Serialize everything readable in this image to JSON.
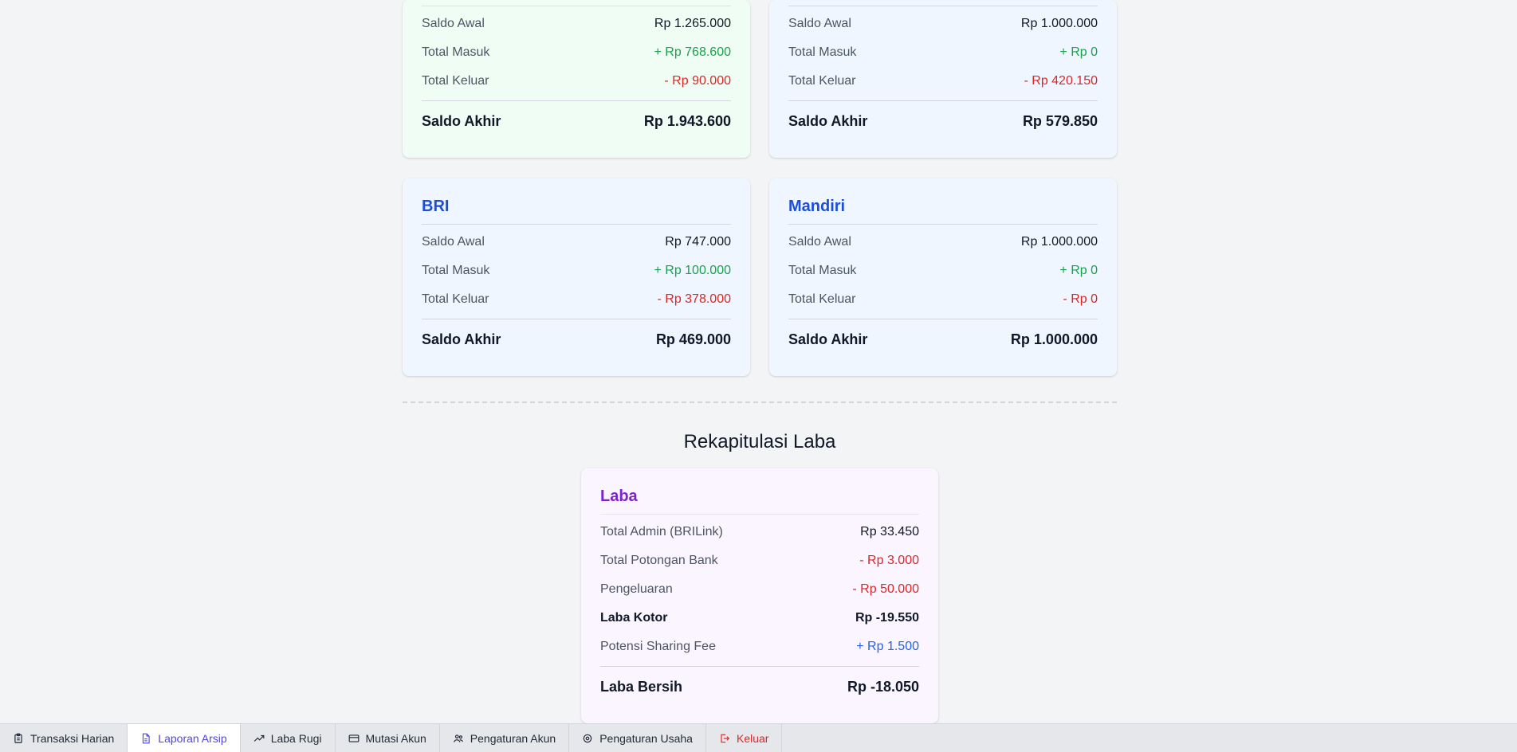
{
  "cards_top": [
    {
      "saldo_awal_label": "Saldo Awal",
      "saldo_awal": "Rp 1.265.000",
      "total_masuk_label": "Total Masuk",
      "total_masuk": "+ Rp 768.600",
      "total_keluar_label": "Total Keluar",
      "total_keluar": "- Rp 90.000",
      "saldo_akhir_label": "Saldo Akhir",
      "saldo_akhir": "Rp 1.943.600"
    },
    {
      "saldo_awal_label": "Saldo Awal",
      "saldo_awal": "Rp 1.000.000",
      "total_masuk_label": "Total Masuk",
      "total_masuk": "+ Rp 0",
      "total_keluar_label": "Total Keluar",
      "total_keluar": "- Rp 420.150",
      "saldo_akhir_label": "Saldo Akhir",
      "saldo_akhir": "Rp 579.850"
    }
  ],
  "cards_banks": [
    {
      "title": "BRI",
      "saldo_awal_label": "Saldo Awal",
      "saldo_awal": "Rp 747.000",
      "total_masuk_label": "Total Masuk",
      "total_masuk": "+ Rp 100.000",
      "total_keluar_label": "Total Keluar",
      "total_keluar": "- Rp 378.000",
      "saldo_akhir_label": "Saldo Akhir",
      "saldo_akhir": "Rp 469.000"
    },
    {
      "title": "Mandiri",
      "saldo_awal_label": "Saldo Awal",
      "saldo_awal": "Rp 1.000.000",
      "total_masuk_label": "Total Masuk",
      "total_masuk": "+ Rp 0",
      "total_keluar_label": "Total Keluar",
      "total_keluar": "- Rp 0",
      "saldo_akhir_label": "Saldo Akhir",
      "saldo_akhir": "Rp 1.000.000"
    }
  ],
  "rekap": {
    "section_title": "Rekapitulasi Laba",
    "card_title": "Laba",
    "rows": [
      {
        "label": "Total Admin (BRILink)",
        "value": "Rp 33.450"
      },
      {
        "label": "Total Potongan Bank",
        "value": "- Rp 3.000"
      },
      {
        "label": "Pengeluaran",
        "value": "- Rp 50.000"
      },
      {
        "label": "Laba Kotor",
        "value": "Rp -19.550"
      },
      {
        "label": "Potensi Sharing Fee",
        "value": "+ Rp 1.500"
      }
    ],
    "total_label": "Laba Bersih",
    "total_value": "Rp -18.050"
  },
  "nav": [
    {
      "label": "Transaksi Harian",
      "icon": "clipboard-icon"
    },
    {
      "label": "Laporan Arsip",
      "icon": "document-icon"
    },
    {
      "label": "Laba Rugi",
      "icon": "trending-up-icon"
    },
    {
      "label": "Mutasi Akun",
      "icon": "credit-card-icon"
    },
    {
      "label": "Pengaturan Akun",
      "icon": "users-icon"
    },
    {
      "label": "Pengaturan Usaha",
      "icon": "gear-icon"
    },
    {
      "label": "Keluar",
      "icon": "logout-icon"
    }
  ],
  "colors": {
    "income": "#16a34a",
    "expense": "#dc2626",
    "bank_title": "#1d4ed8",
    "profit_title": "#7e22ce",
    "active_tab": "#4f46e5"
  }
}
